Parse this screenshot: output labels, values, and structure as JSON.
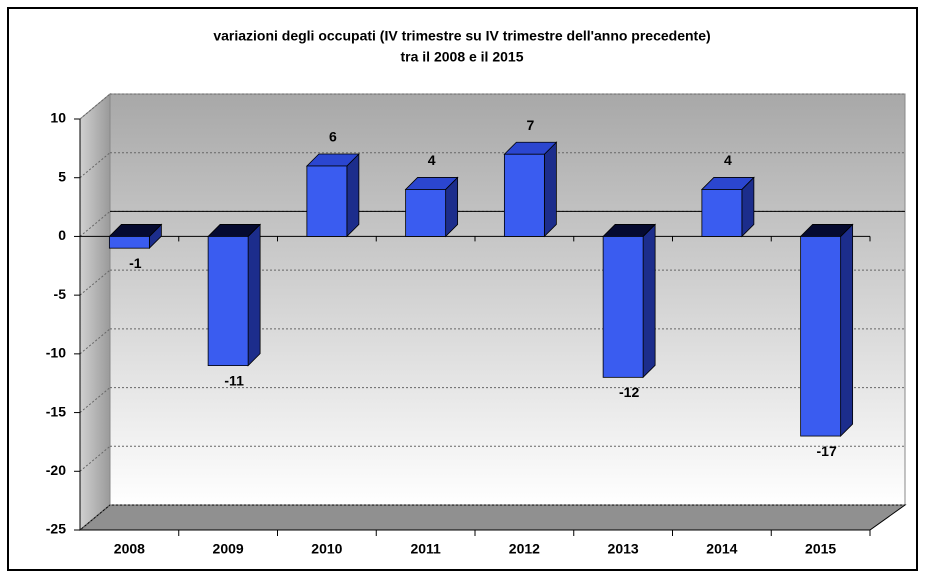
{
  "chart_data": {
    "type": "bar",
    "title": "variazioni degli occupati (IV trimestre su IV trimestre dell'anno precedente)",
    "subtitle": "tra il 2008 e il 2015",
    "categories": [
      "2008",
      "2009",
      "2010",
      "2011",
      "2012",
      "2013",
      "2014",
      "2015"
    ],
    "values": [
      -1,
      -11,
      6,
      4,
      7,
      -12,
      4,
      -17
    ],
    "color": "#3a5cf0",
    "ylim": [
      -25,
      10
    ],
    "yticks": [
      -25,
      -20,
      -15,
      -10,
      -5,
      0,
      5,
      10
    ],
    "grid": true
  }
}
